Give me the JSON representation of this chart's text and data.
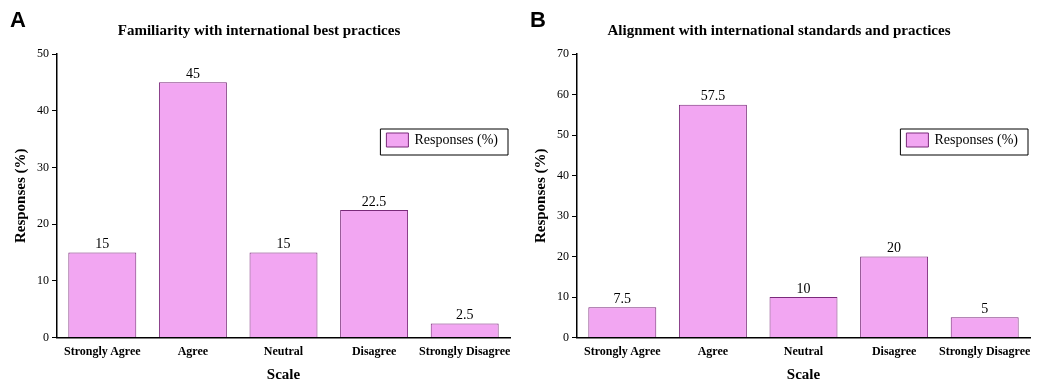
{
  "chart_data": [
    {
      "type": "bar",
      "title": "Familiarity with international best practices",
      "xlabel": "Scale",
      "ylabel": "Responses (%)",
      "annotations": [
        "A"
      ],
      "categories": [
        "Strongly Agree",
        "Agree",
        "Neutral",
        "Disagree",
        "Strongly Disagree"
      ],
      "series": [
        {
          "name": "Responses (%)",
          "color": "#f2a6f2",
          "values": [
            15,
            45,
            15,
            22.5,
            2.5
          ]
        }
      ],
      "ylim": [
        0,
        50
      ],
      "yticks": [
        0,
        10,
        20,
        30,
        40,
        50
      ],
      "grid": false,
      "legend": "top right",
      "data_labels": true
    },
    {
      "type": "bar",
      "title": "Alignment with international standards and practices",
      "xlabel": "Scale",
      "ylabel": "Responses (%)",
      "annotations": [
        "B"
      ],
      "categories": [
        "Strongly Agree",
        "Agree",
        "Neutral",
        "Disagree",
        "Strongly Disagree"
      ],
      "series": [
        {
          "name": "Responses (%)",
          "color": "#f2a6f2",
          "values": [
            7.5,
            57.5,
            10,
            20,
            5
          ]
        }
      ],
      "ylim": [
        0,
        70
      ],
      "yticks": [
        0,
        10,
        20,
        30,
        40,
        50,
        60,
        70
      ],
      "grid": false,
      "legend": "top right",
      "data_labels": true
    }
  ]
}
